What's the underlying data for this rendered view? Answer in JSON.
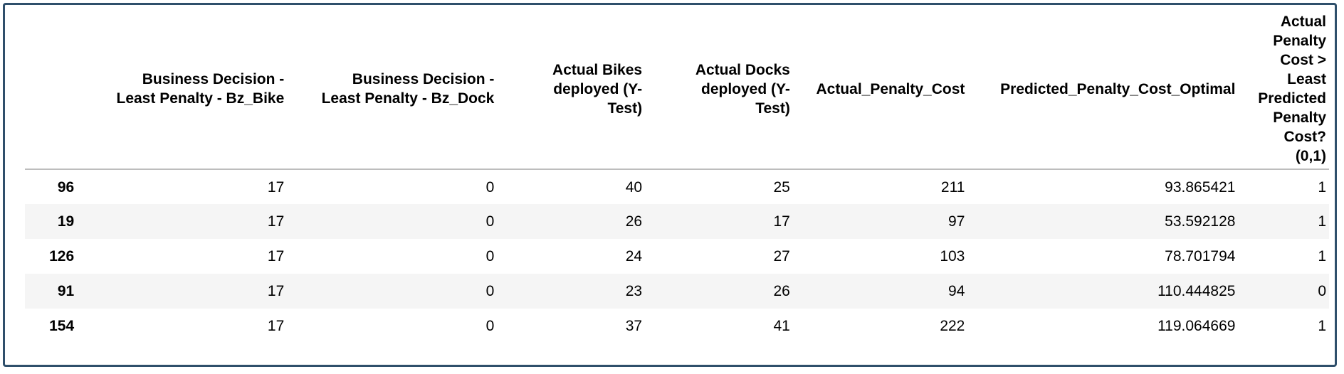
{
  "table": {
    "columns": [
      {
        "lines": [
          ""
        ]
      },
      {
        "lines": [
          "Business Decision -",
          "Least Penalty - Bz_Bike"
        ]
      },
      {
        "lines": [
          "Business Decision -",
          "Least Penalty - Bz_Dock"
        ]
      },
      {
        "lines": [
          "Actual Bikes",
          "deployed (Y-",
          "Test)"
        ]
      },
      {
        "lines": [
          "Actual Docks",
          "deployed (Y-",
          "Test)"
        ]
      },
      {
        "lines": [
          "Actual_Penalty_Cost"
        ]
      },
      {
        "lines": [
          "Predicted_Penalty_Cost_Optimal"
        ]
      },
      {
        "lines": [
          "Actual",
          "Penalty",
          "Cost >",
          "Least",
          "Predicted",
          "Penalty",
          "Cost?",
          "(0,1)"
        ]
      }
    ],
    "rows": [
      {
        "index": "96",
        "cells": [
          "17",
          "0",
          "40",
          "25",
          "211",
          "93.865421",
          "1"
        ]
      },
      {
        "index": "19",
        "cells": [
          "17",
          "0",
          "26",
          "17",
          "97",
          "53.592128",
          "1"
        ]
      },
      {
        "index": "126",
        "cells": [
          "17",
          "0",
          "24",
          "27",
          "103",
          "78.701794",
          "1"
        ]
      },
      {
        "index": "91",
        "cells": [
          "17",
          "0",
          "23",
          "26",
          "94",
          "110.444825",
          "0"
        ]
      },
      {
        "index": "154",
        "cells": [
          "17",
          "0",
          "37",
          "41",
          "222",
          "119.064669",
          "1"
        ]
      }
    ]
  }
}
